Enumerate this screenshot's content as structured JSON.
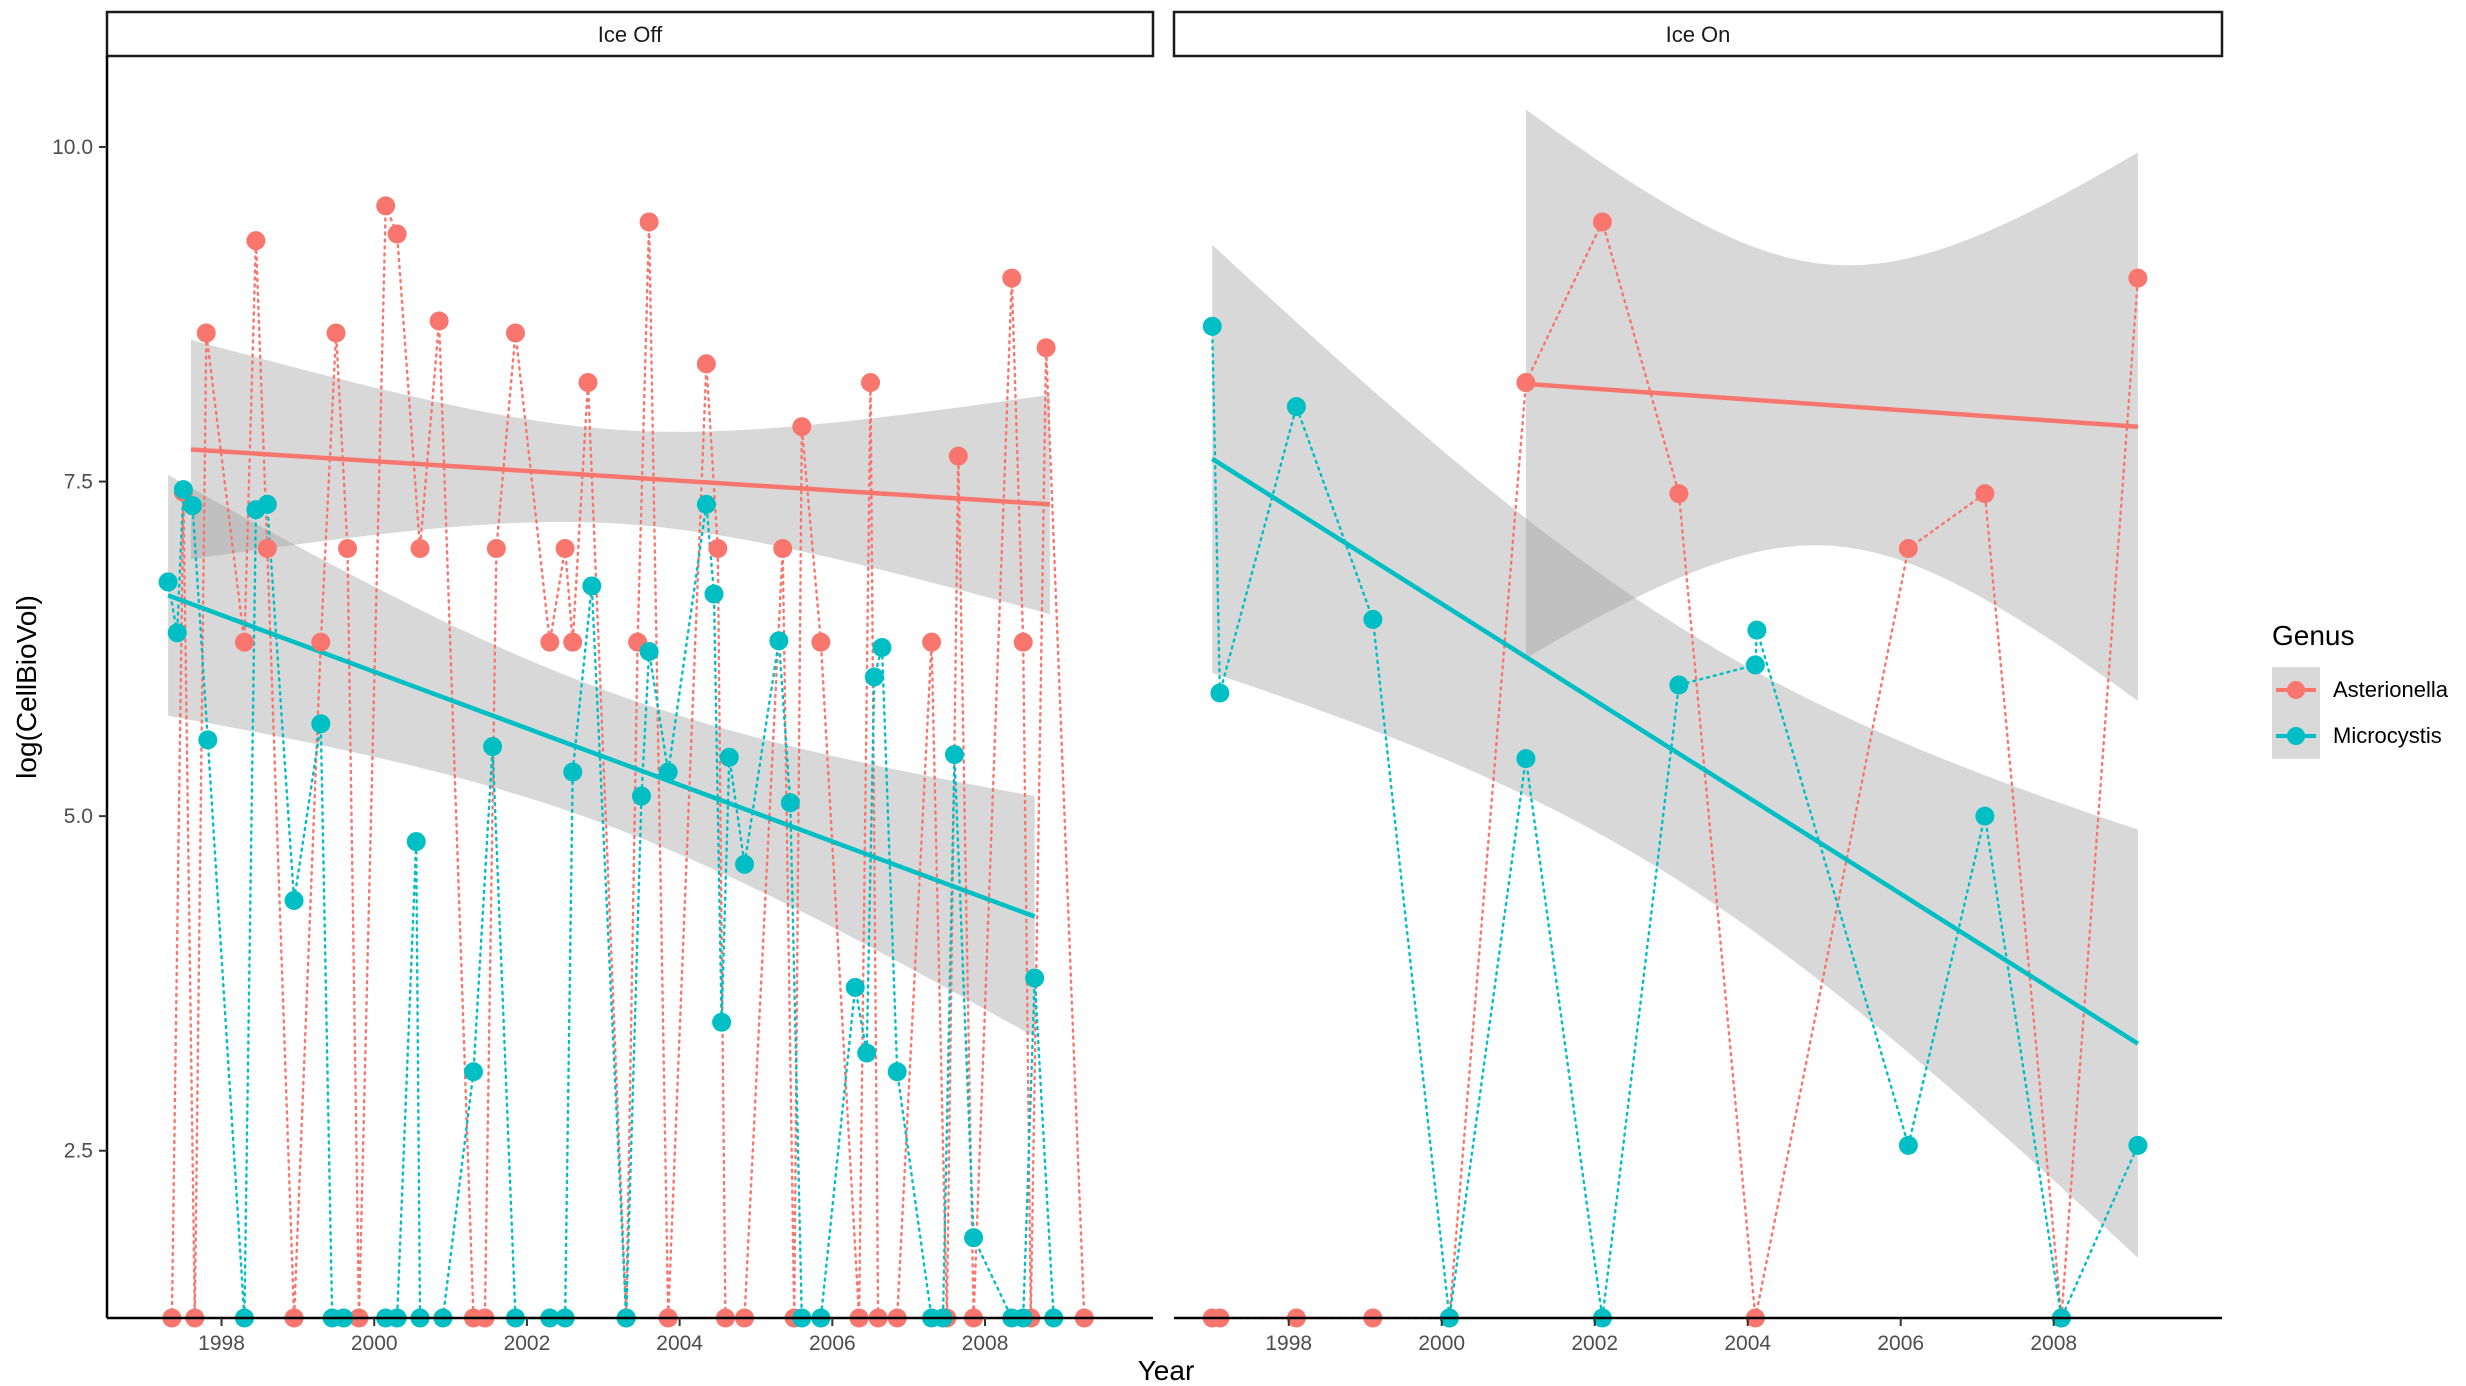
{
  "chart_data": {
    "type": "scatter",
    "xlabel": "Year",
    "ylabel": "log(CellBioVol)",
    "xlim": [
      1996.5,
      2010.2
    ],
    "ylim": [
      1.25,
      10.68
    ],
    "x_ticks": [
      1998,
      2000,
      2002,
      2004,
      2006,
      2008
    ],
    "x_tick_labels": [
      "1998",
      "2000",
      "2002",
      "2004",
      "2006",
      "2008"
    ],
    "y_ticks": [
      2.5,
      5.0,
      7.5,
      10.0
    ],
    "y_tick_labels": [
      "2.5",
      "5.0",
      "7.5",
      "10.0"
    ],
    "grid": false,
    "legend": {
      "title": "Genus",
      "position": "right",
      "entries": [
        {
          "name": "Asterionella",
          "color": "#F8766D"
        },
        {
          "name": "Microcystis",
          "color": "#00BFC4"
        }
      ]
    },
    "panels": [
      {
        "label": "Ice Off",
        "series": [
          {
            "name": "Asterionella",
            "color": "#F8766D",
            "x": [
              1997.35,
              1997.5,
              1997.65,
              1997.8,
              1998.3,
              1998.45,
              1998.6,
              1998.95,
              1999.3,
              1999.5,
              1999.65,
              1999.8,
              2000.15,
              2000.3,
              2000.6,
              2000.85,
              2001.3,
              2001.45,
              2001.6,
              2001.85,
              2002.3,
              2002.5,
              2002.6,
              2002.8,
              2003.3,
              2003.45,
              2003.6,
              2003.85,
              2004.35,
              2004.5,
              2004.6,
              2004.85,
              2005.35,
              2005.5,
              2005.6,
              2005.85,
              2006.35,
              2006.5,
              2006.6,
              2006.85,
              2007.3,
              2007.5,
              2007.65,
              2007.85,
              2008.35,
              2008.5,
              2008.6,
              2008.8,
              2009.3
            ],
            "y": [
              1.25,
              7.42,
              1.25,
              8.61,
              6.3,
              9.3,
              7.0,
              1.25,
              6.3,
              8.61,
              7.0,
              1.25,
              9.56,
              9.35,
              7.0,
              8.7,
              1.25,
              1.25,
              7.0,
              8.61,
              6.3,
              7.0,
              6.3,
              8.24,
              1.25,
              6.3,
              9.44,
              1.25,
              8.38,
              7.0,
              1.25,
              1.25,
              7.0,
              1.25,
              7.91,
              6.3,
              1.25,
              8.24,
              1.25,
              1.25,
              6.3,
              1.25,
              7.69,
              1.25,
              9.02,
              6.3,
              1.25,
              8.5,
              1.25
            ],
            "trend": {
              "x": [
                1997.6,
                2008.85
              ],
              "y": [
                7.74,
                7.33
              ]
            }
          },
          {
            "name": "Microcystis",
            "color": "#00BFC4",
            "x": [
              1997.3,
              1997.42,
              1997.5,
              1997.62,
              1997.82,
              1998.3,
              1998.45,
              1998.6,
              1998.95,
              1999.3,
              1999.45,
              1999.6,
              2000.15,
              2000.3,
              2000.55,
              2000.6,
              2000.9,
              2001.3,
              2001.55,
              2001.85,
              2002.3,
              2002.5,
              2002.6,
              2002.85,
              2003.3,
              2003.5,
              2003.6,
              2003.85,
              2004.35,
              2004.45,
              2004.55,
              2004.65,
              2004.85,
              2005.3,
              2005.45,
              2005.6,
              2005.85,
              2006.3,
              2006.45,
              2006.55,
              2006.65,
              2006.85,
              2007.3,
              2007.45,
              2007.6,
              2007.85,
              2008.35,
              2008.5,
              2008.65,
              2008.9
            ],
            "y": [
              6.75,
              6.37,
              7.44,
              7.32,
              5.57,
              1.25,
              7.29,
              7.33,
              4.37,
              5.69,
              1.25,
              1.25,
              1.25,
              1.25,
              4.81,
              1.25,
              1.25,
              3.09,
              5.52,
              1.25,
              1.25,
              1.25,
              5.33,
              6.72,
              1.25,
              5.15,
              6.23,
              5.33,
              7.33,
              6.66,
              3.46,
              5.44,
              4.64,
              6.31,
              5.1,
              1.25,
              1.25,
              3.72,
              3.23,
              6.04,
              6.26,
              3.09,
              1.25,
              1.25,
              5.46,
              1.85,
              1.25,
              1.25,
              3.79,
              1.25
            ],
            "trend": {
              "x": [
                1997.3,
                2008.65
              ],
              "y": [
                6.65,
                4.25
              ]
            }
          }
        ]
      },
      {
        "label": "Ice On",
        "series": [
          {
            "name": "Asterionella",
            "color": "#F8766D",
            "x": [
              1997.0,
              1997.1,
              1998.1,
              1999.1,
              2000.1,
              2001.1,
              2002.1,
              2003.1,
              2004.1,
              2006.1,
              2007.1,
              2008.1,
              2009.1
            ],
            "y": [
              1.25,
              1.25,
              1.25,
              1.25,
              1.25,
              8.24,
              9.44,
              7.41,
              1.25,
              7.0,
              7.41,
              1.25,
              9.02
            ],
            "trend": {
              "x": [
                2001.1,
                2009.1
              ],
              "y": [
                8.23,
                7.91
              ]
            }
          },
          {
            "name": "Microcystis",
            "color": "#00BFC4",
            "x": [
              1997.0,
              1997.1,
              1998.1,
              1999.1,
              2000.1,
              2001.1,
              2002.1,
              2003.1,
              2004.1,
              2004.12,
              2006.1,
              2007.1,
              2008.1,
              2009.1
            ],
            "y": [
              8.66,
              5.92,
              8.06,
              6.47,
              1.25,
              5.43,
              1.25,
              5.98,
              6.13,
              6.39,
              2.54,
              5.0,
              1.25,
              2.54
            ],
            "trend": {
              "x": [
                1997.0,
                2009.1
              ],
              "y": [
                7.67,
                3.3
              ]
            }
          }
        ]
      }
    ]
  }
}
